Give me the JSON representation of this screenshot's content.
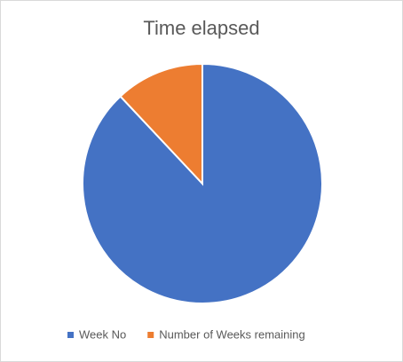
{
  "chart_data": {
    "type": "pie",
    "title": "Time elapsed",
    "categories": [
      "Week No",
      "Number of Weeks remaining"
    ],
    "values": [
      88,
      12
    ],
    "colors": [
      "#4472c4",
      "#ed7d31"
    ],
    "legend": "bottom"
  }
}
